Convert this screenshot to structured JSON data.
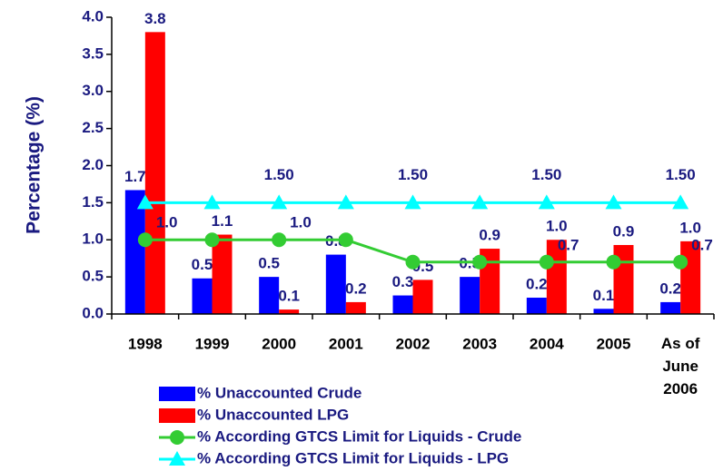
{
  "chart_data": {
    "type": "bar_line",
    "ylabel": "Percentage (%)",
    "categories": [
      "1998",
      "1999",
      "2000",
      "2001",
      "2002",
      "2003",
      "2004",
      "2005",
      "As of June 2006"
    ],
    "ylim": [
      0,
      4
    ],
    "yticks": [
      {
        "value": 0,
        "label": "0.0"
      },
      {
        "value": 0.5,
        "label": "0.5"
      },
      {
        "value": 1,
        "label": "1.0"
      },
      {
        "value": 1.5,
        "label": "1.5"
      },
      {
        "value": 2,
        "label": "2.0"
      },
      {
        "value": 2.5,
        "label": "2.5"
      },
      {
        "value": 3,
        "label": "3.0"
      },
      {
        "value": 3.5,
        "label": "3.5"
      },
      {
        "value": 4,
        "label": "4.0"
      }
    ],
    "series": [
      {
        "name": "% Unaccounted Crude",
        "type": "bar",
        "color": "#0000ff",
        "values": [
          1.67,
          0.48,
          0.5,
          0.8,
          0.25,
          0.5,
          0.22,
          0.07,
          0.16
        ],
        "value_labels": [
          "1.7",
          "0.5",
          "0.5",
          "0.8",
          "0.3",
          "0.5",
          "0.2",
          "0.1",
          "0.2"
        ]
      },
      {
        "name": "% Unaccounted LPG",
        "type": "bar",
        "color": "#ff0000",
        "values": [
          3.8,
          1.07,
          0.06,
          0.16,
          0.46,
          0.88,
          1.0,
          0.93,
          0.98
        ],
        "value_labels": [
          "3.8",
          "1.1",
          "0.1",
          "0.2",
          "0.5",
          "0.9",
          "1.0",
          "0.9",
          "1.0"
        ]
      },
      {
        "name": "% According GTCS Limit for Liquids - Crude",
        "type": "line",
        "marker": "circle",
        "color": "#33cc33",
        "values": [
          1.0,
          1.0,
          1.0,
          1.0,
          0.7,
          0.7,
          0.7,
          0.7,
          0.7
        ],
        "value_labels": [
          "1.0",
          null,
          "1.0",
          null,
          null,
          null,
          "0.7",
          null,
          "0.7"
        ]
      },
      {
        "name": "% According GTCS Limit for Liquids - LPG",
        "type": "line",
        "marker": "triangle",
        "color": "#00ffff",
        "values": [
          1.5,
          1.5,
          1.5,
          1.5,
          1.5,
          1.5,
          1.5,
          1.5,
          1.5
        ],
        "value_labels": [
          null,
          null,
          "1.50",
          null,
          "1.50",
          null,
          "1.50",
          null,
          "1.50"
        ]
      }
    ]
  }
}
